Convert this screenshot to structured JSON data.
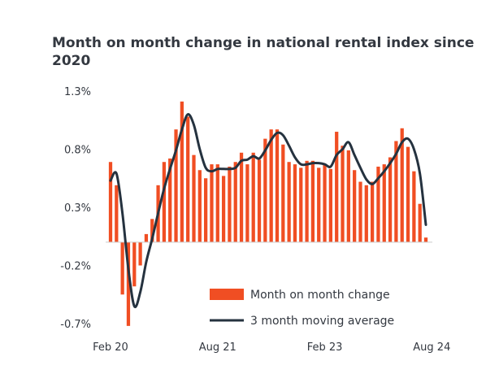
{
  "chart_data": {
    "type": "bar",
    "title": "Month on month change in national rental index since 2020",
    "xlabel": "",
    "ylabel": "",
    "ylim": [
      -0.75,
      1.35
    ],
    "y_ticks": [
      {
        "value": 1.3,
        "label": "1.3%"
      },
      {
        "value": 0.8,
        "label": "0.8%"
      },
      {
        "value": 0.3,
        "label": "0.3%"
      },
      {
        "value": -0.2,
        "label": "-0.2%"
      },
      {
        "value": -0.7,
        "label": "-0.7%"
      }
    ],
    "x_ticks": [
      {
        "index": 0,
        "label": "Feb 20"
      },
      {
        "index": 18,
        "label": "Aug 21"
      },
      {
        "index": 36,
        "label": "Feb 23"
      },
      {
        "index": 54,
        "label": "Aug 24"
      }
    ],
    "grid": false,
    "legend_position": "bottom-right",
    "colors": {
      "bar": "#f04e23",
      "line": "#25323f",
      "text": "#333840",
      "axis": "#cccccc"
    },
    "series": [
      {
        "name": "Month on month change",
        "type": "bar",
        "values": [
          0.69,
          0.49,
          -0.45,
          -0.72,
          -0.38,
          -0.2,
          0.07,
          0.2,
          0.49,
          0.69,
          0.72,
          0.97,
          1.21,
          1.08,
          0.75,
          0.62,
          0.55,
          0.67,
          0.67,
          0.57,
          0.65,
          0.69,
          0.77,
          0.67,
          0.77,
          0.71,
          0.89,
          0.97,
          0.97,
          0.84,
          0.69,
          0.67,
          0.64,
          0.7,
          0.7,
          0.64,
          0.67,
          0.63,
          0.95,
          0.83,
          0.79,
          0.62,
          0.52,
          0.49,
          0.52,
          0.65,
          0.67,
          0.73,
          0.87,
          0.98,
          0.82,
          0.61,
          0.33,
          0.04
        ]
      },
      {
        "name": "3 month moving average",
        "type": "line",
        "values": [
          0.53,
          0.59,
          0.25,
          -0.23,
          -0.55,
          -0.43,
          -0.17,
          0.03,
          0.25,
          0.46,
          0.63,
          0.79,
          0.97,
          1.1,
          1.01,
          0.8,
          0.64,
          0.61,
          0.63,
          0.63,
          0.63,
          0.64,
          0.7,
          0.71,
          0.74,
          0.72,
          0.79,
          0.88,
          0.94,
          0.92,
          0.83,
          0.73,
          0.67,
          0.67,
          0.68,
          0.68,
          0.67,
          0.65,
          0.75,
          0.8,
          0.86,
          0.75,
          0.64,
          0.54,
          0.5,
          0.55,
          0.61,
          0.68,
          0.76,
          0.86,
          0.89,
          0.8,
          0.59,
          0.15
        ]
      }
    ]
  }
}
